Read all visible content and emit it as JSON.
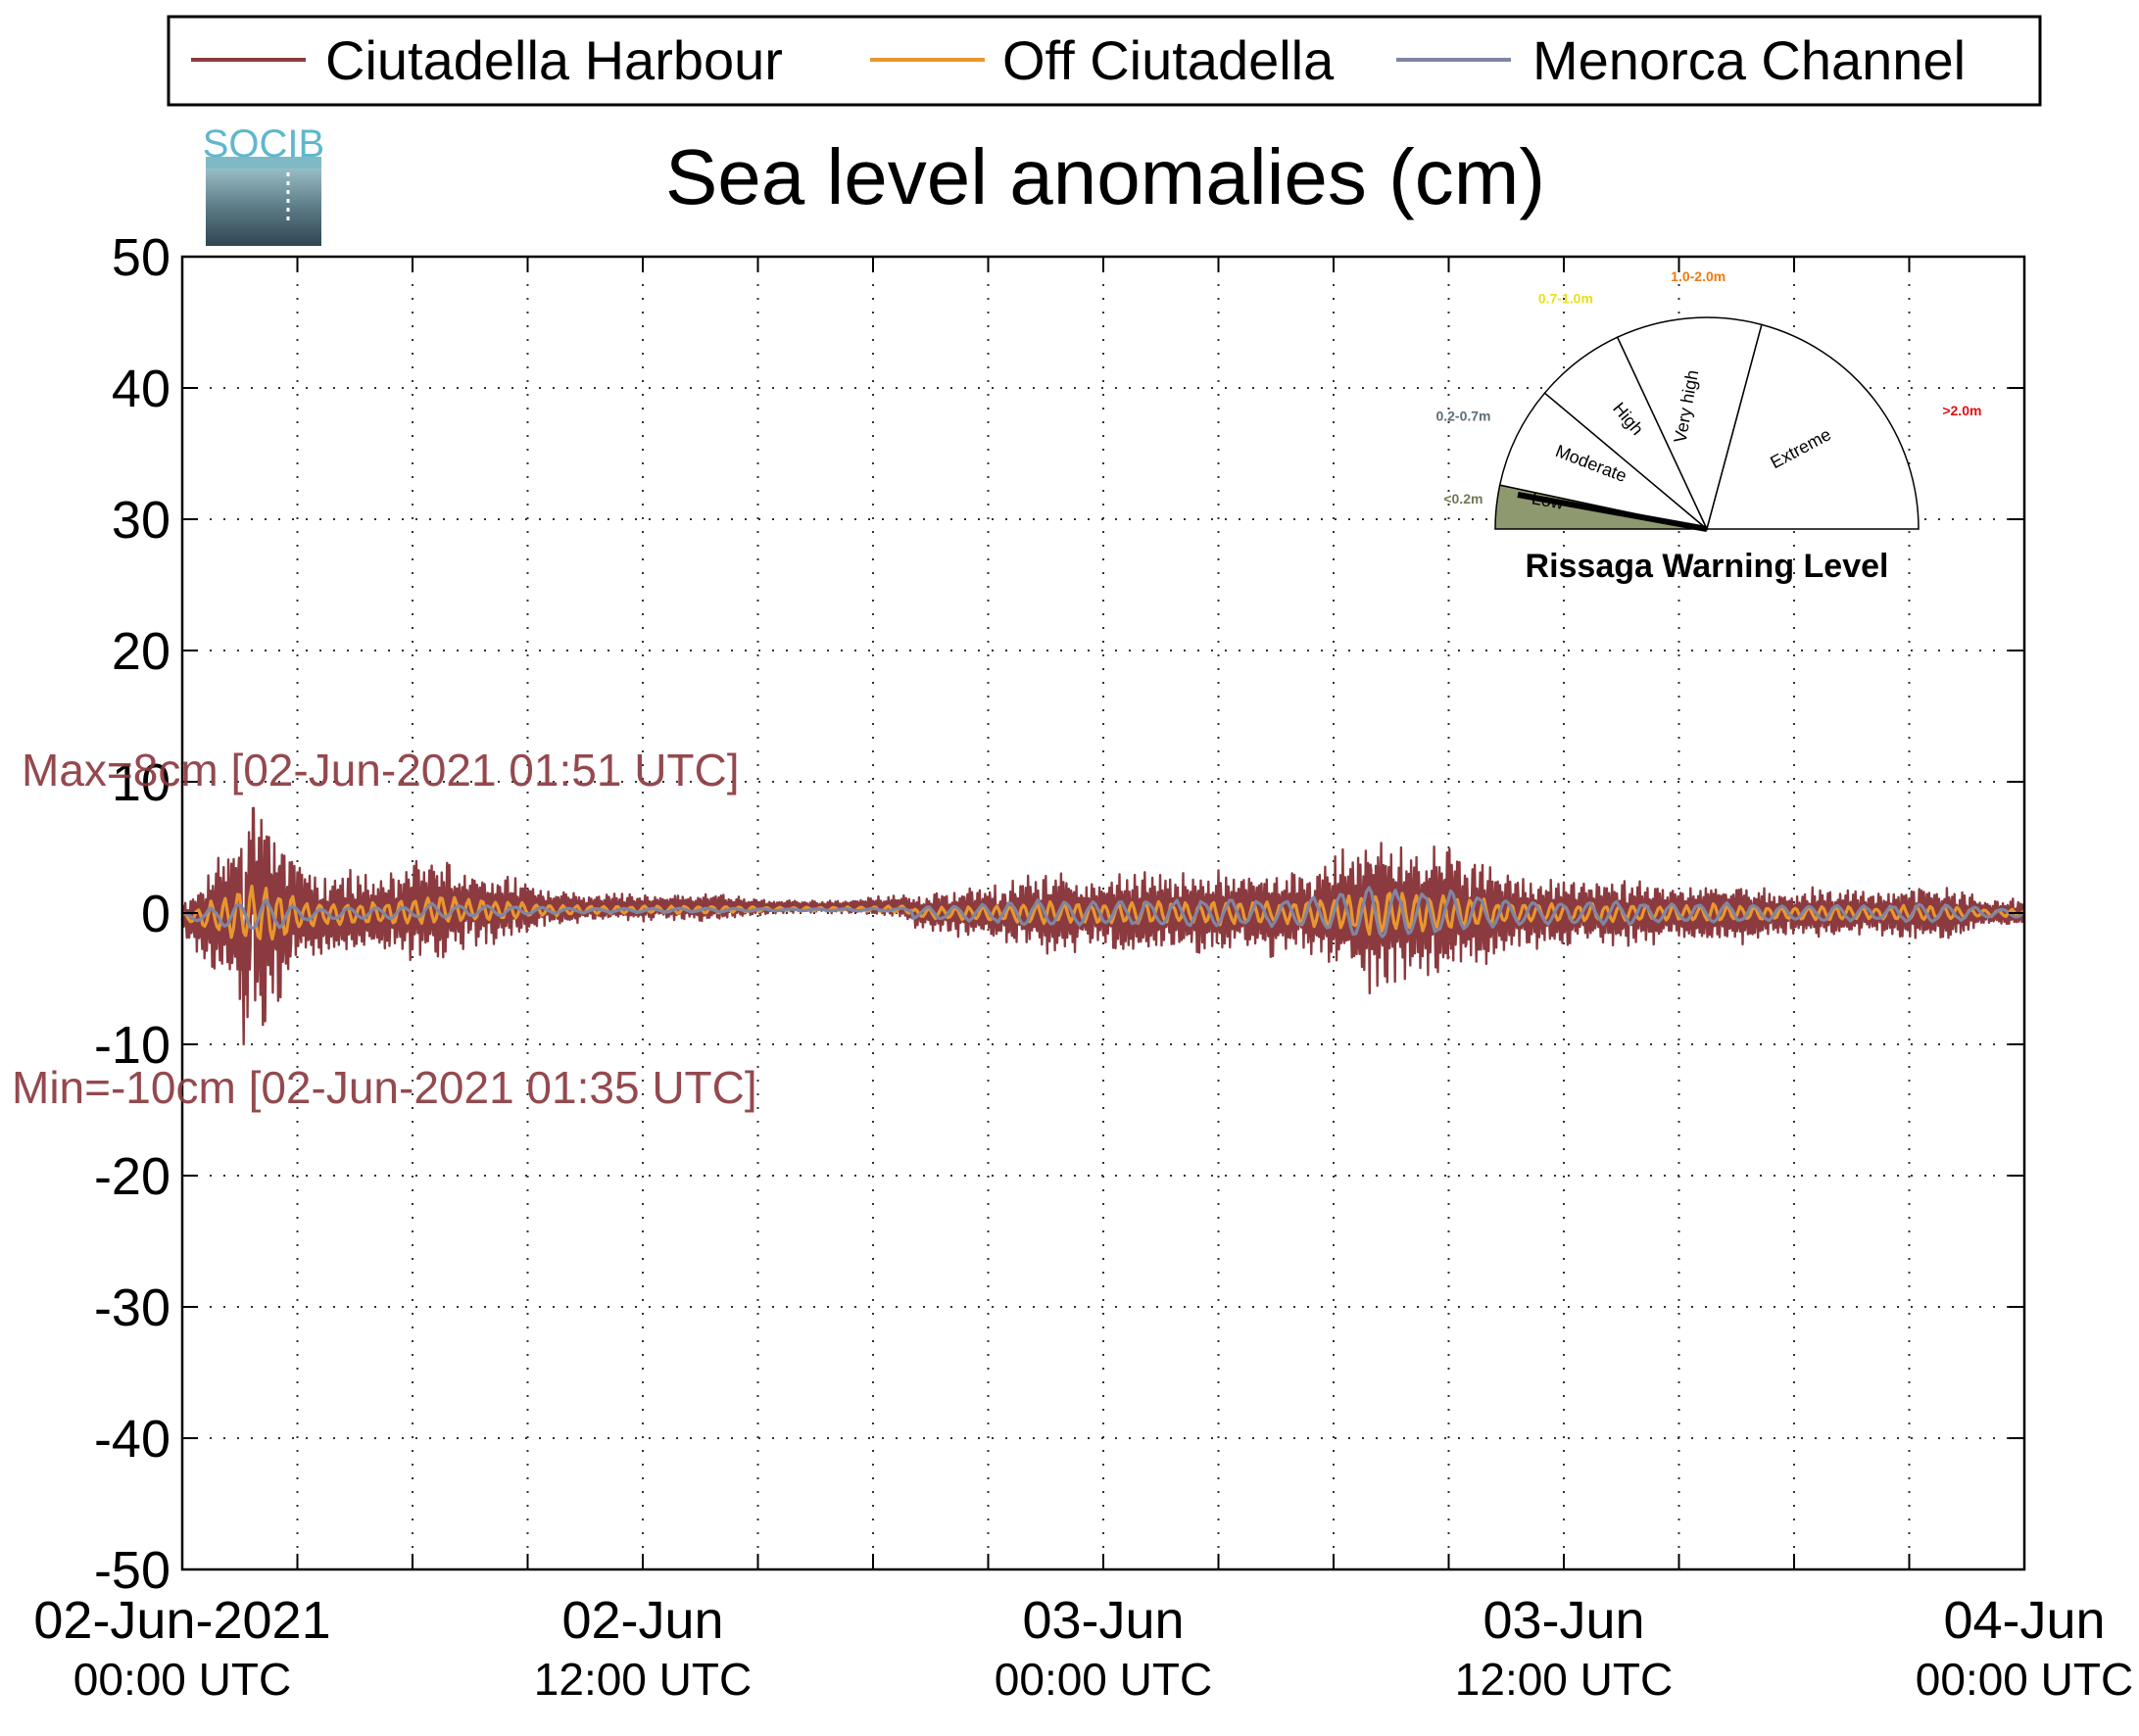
{
  "logo": {
    "text": "SOCIB",
    "color": "#5fb7cc"
  },
  "chart_data": {
    "type": "line",
    "title": "Sea level anomalies (cm)",
    "xlabel": "",
    "ylabel": "",
    "ylim": [
      -50,
      50
    ],
    "yticks": [
      50,
      40,
      30,
      20,
      10,
      0,
      -10,
      -20,
      -30,
      -40,
      -50
    ],
    "xlim_hours": [
      0,
      48
    ],
    "xtick_labels": [
      {
        "top": "02-Jun-2021",
        "bottom": "00:00 UTC"
      },
      {
        "top": "02-Jun",
        "bottom": "12:00 UTC"
      },
      {
        "top": "03-Jun",
        "bottom": "00:00 UTC"
      },
      {
        "top": "03-Jun",
        "bottom": "12:00 UTC"
      },
      {
        "top": "04-Jun",
        "bottom": "00:00 UTC"
      }
    ],
    "x_unit": "hours since 02-Jun-2021 00:00 UTC",
    "grid": "dotted",
    "legend_position": "top",
    "series": [
      {
        "name": "Ciutadella Harbour",
        "color": "#8b3a3f",
        "envelope": {
          "x": [
            0,
            0.5,
            1.0,
            1.5,
            1.8,
            2.2,
            2.7,
            3.0,
            3.5,
            4.5,
            5.5,
            6.5,
            7.5,
            8.5,
            9.5,
            11,
            12.5,
            14,
            15.5,
            17,
            18.5,
            19.5,
            21,
            22.5,
            24,
            25,
            26,
            27,
            28,
            29,
            30,
            31,
            32,
            33,
            34,
            35,
            36,
            37,
            38,
            39,
            40,
            41,
            42,
            43,
            44,
            45,
            46,
            47,
            48
          ],
          "y": [
            1,
            3,
            5,
            7,
            8,
            8,
            6,
            4,
            3,
            3,
            3,
            4,
            3,
            2.5,
            1.5,
            1,
            1,
            1,
            0.5,
            0.5,
            0.8,
            1.5,
            2,
            3,
            2.5,
            3,
            3,
            3,
            3,
            3,
            4,
            6,
            5,
            5,
            3.5,
            2.5,
            2.5,
            2.5,
            2.5,
            2,
            2.5,
            2,
            1.5,
            2,
            1.5,
            2,
            2,
            1,
            1
          ]
        },
        "max_label": "Max=8cm [02-Jun-2021 01:51 UTC]",
        "min_label": "Min=-10cm [02-Jun-2021 01:35 UTC]"
      },
      {
        "name": "Off Ciutadella",
        "color": "#e8972f"
      },
      {
        "name": "Menorca Channel",
        "color": "#7f86a3"
      }
    ]
  },
  "warning_gauge": {
    "title": "Rissaga Warning Level",
    "sectors": [
      {
        "label": "Low",
        "range": "<0.2m",
        "range_color": "#6f7a50",
        "fill": "#8e9970"
      },
      {
        "label": "Moderate",
        "range": "0.2-0.7m",
        "range_color": "#5b6e78",
        "fill": "#ffffff"
      },
      {
        "label": "High",
        "range": "0.7-1.0m",
        "range_color": "#e8e01a",
        "fill": "#ffffff"
      },
      {
        "label": "Very high",
        "range": "1.0-2.0m",
        "range_color": "#f07a10",
        "fill": "#ffffff"
      },
      {
        "label": "Extreme",
        "range": ">2.0m",
        "range_color": "#e01010",
        "fill": "#ffffff"
      }
    ],
    "current_level": "Low"
  }
}
